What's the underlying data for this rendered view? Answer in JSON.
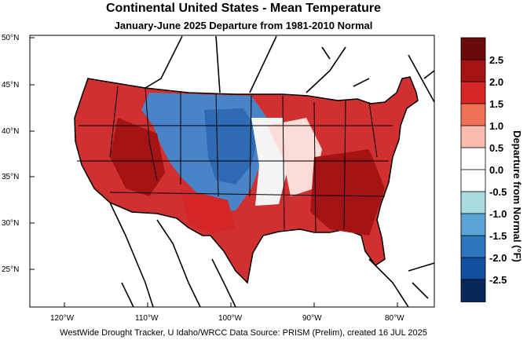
{
  "title": "Continental United States - Mean Temperature",
  "subtitle": "January-June 2025  Departure from 1981-2010 Normal",
  "credit": "WestWide Drought Tracker, U Idaho/WRCC Data Source: PRISM (Prelim), created 16 JUL 2025",
  "lat_labels": [
    "50°N",
    "45°N",
    "40°N",
    "35°N",
    "30°N",
    "25°N"
  ],
  "lon_labels": [
    "120°W",
    "110°W",
    "100°W",
    "90°W",
    "80°W"
  ],
  "legend": {
    "title": "Departure from Normal (°F)",
    "ticks": [
      "2.5",
      "2.0",
      "1.5",
      "1.0",
      "0.5",
      "0.0",
      "-0.5",
      "-1.0",
      "-1.5",
      "-2.0",
      "-2.5"
    ],
    "colors": [
      "#6b0a0a",
      "#a51414",
      "#d42626",
      "#f07055",
      "#fbbcb0",
      "#ffffff",
      "#ffffff",
      "#a9dbe1",
      "#5aa5d6",
      "#2d76bd",
      "#0f4f9e",
      "#0a2759"
    ]
  }
}
